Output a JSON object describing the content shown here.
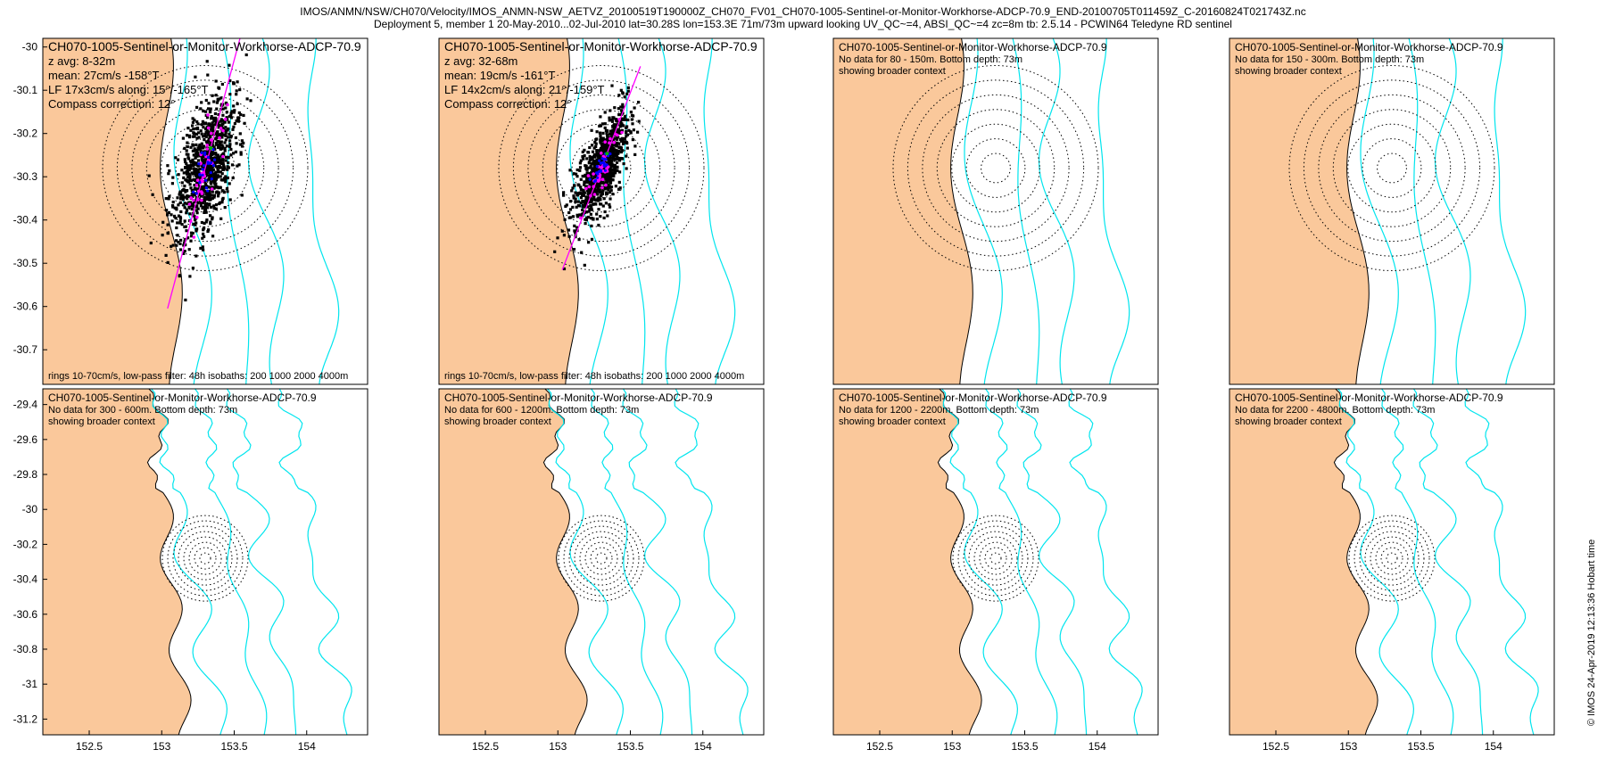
{
  "header": {
    "line1": "IMOS/ANMN/NSW/CH070/Velocity/IMOS_ANMN-NSW_AETVZ_20100519T190000Z_CH070_FV01_CH070-1005-Sentinel-or-Monitor-Workhorse-ADCP-70.9_END-20100705T011459Z_C-20160824T021743Z.nc",
    "line2": "Deployment 5, member 1 20-May-2010...02-Jul-2010 lat=30.28S lon=153.3E 71m/73m upward looking UV_QC~=4, ABSI_QC~=4 zc=8m tb: 2.5.14 - PCWIN64 Teledyne RD sentinel"
  },
  "footer": {
    "credit": "© IMOS 24-Apr-2019 12:13:36 Hobart time"
  },
  "colors": {
    "land": "#FAC89B",
    "isobath": "#00E5EE",
    "rings": "#000000",
    "scatter": "#000000",
    "axis": "#FF00FF",
    "mean": "#0000FF"
  },
  "chart_data": [
    {
      "type": "scatter",
      "title": "CH070-1005-Sentinel-or-Monitor-Workhorse-ADCP-70.9",
      "info": [
        "z avg: 8-32m",
        "mean: 27cm/s -158°T",
        "LF 17x3cm/s along: 15°/-165°T",
        "Compass correction: 12°"
      ],
      "note": "rings 10-70cm/s, low-pass filter: 48h isobaths: 200 1000 2000 4000m",
      "y_ticks": [
        -30,
        -30.1,
        -30.2,
        -30.3,
        -30.4,
        -30.5,
        -30.6,
        -30.7
      ],
      "ylim": [
        -30.78,
        -29.98
      ],
      "center": [
        153.3,
        -30.28
      ],
      "ring_speeds_cm_s": [
        10,
        20,
        30,
        40,
        50,
        60,
        70
      ],
      "along_direction_deg": 15,
      "spread_major_deg": 0.16,
      "spread_minor_deg": 0.05
    },
    {
      "type": "scatter",
      "title": "CH070-1005-Sentinel-or-Monitor-Workhorse-ADCP-70.9",
      "info": [
        "z avg: 32-68m",
        "mean: 19cm/s -161°T",
        "LF 14x2cm/s along: 21°/-159°T",
        "Compass correction: 12°"
      ],
      "note": "rings 10-70cm/s, low-pass filter: 48h isobaths: 200 1000 2000 4000m",
      "ylim": [
        -30.78,
        -29.98
      ],
      "center": [
        153.3,
        -30.28
      ],
      "ring_speeds_cm_s": [
        10,
        20,
        30,
        40,
        50,
        60,
        70
      ],
      "along_direction_deg": 21,
      "spread_major_deg": 0.12,
      "spread_minor_deg": 0.035
    },
    {
      "type": "map",
      "title": "CH070-1005-Sentinel-or-Monitor-Workhorse-ADCP-70.9",
      "info": [
        "No data for 80 - 150m. Bottom depth: 73m",
        "showing broader context"
      ],
      "ylim": [
        -30.78,
        -29.98
      ]
    },
    {
      "type": "map",
      "title": "CH070-1005-Sentinel-or-Monitor-Workhorse-ADCP-70.9",
      "info": [
        "No data for 150 - 300m. Bottom depth: 73m",
        "showing broader context"
      ],
      "ylim": [
        -30.78,
        -29.98
      ]
    },
    {
      "type": "map",
      "title": "CH070-1005-Sentinel-or-Monitor-Workhorse-ADCP-70.9",
      "info": [
        "No data for 300 - 600m. Bottom depth: 73m",
        "showing broader context"
      ],
      "y_ticks": [
        -29.4,
        -29.6,
        -29.8,
        -30,
        -30.2,
        -30.4,
        -30.6,
        -30.8,
        -31,
        -31.2
      ],
      "x_ticks": [
        152.5,
        153,
        153.5,
        154
      ],
      "xlim": [
        152.18,
        154.42
      ],
      "ylim": [
        -31.29,
        -29.31
      ]
    },
    {
      "type": "map",
      "title": "CH070-1005-Sentinel-or-Monitor-Workhorse-ADCP-70.9",
      "info": [
        "No data for 600 - 1200m. Bottom depth: 73m",
        "showing broader context"
      ],
      "x_ticks": [
        152.5,
        153,
        153.5,
        154
      ],
      "xlim": [
        152.18,
        154.42
      ],
      "ylim": [
        -31.29,
        -29.31
      ]
    },
    {
      "type": "map",
      "title": "CH070-1005-Sentinel-or-Monitor-Workhorse-ADCP-70.9",
      "info": [
        "No data for 1200 - 2200m. Bottom depth: 73m",
        "showing broader context"
      ],
      "x_ticks": [
        152.5,
        153,
        153.5,
        154
      ],
      "xlim": [
        152.18,
        154.42
      ],
      "ylim": [
        -31.29,
        -29.31
      ]
    },
    {
      "type": "map",
      "title": "CH070-1005-Sentinel-or-Monitor-Workhorse-ADCP-70.9",
      "info": [
        "No data for 2200 - 4800m. Bottom depth: 73m",
        "showing broader context"
      ],
      "x_ticks": [
        152.5,
        153,
        153.5,
        154
      ],
      "xlim": [
        152.18,
        154.42
      ],
      "ylim": [
        -31.29,
        -29.31
      ]
    }
  ]
}
